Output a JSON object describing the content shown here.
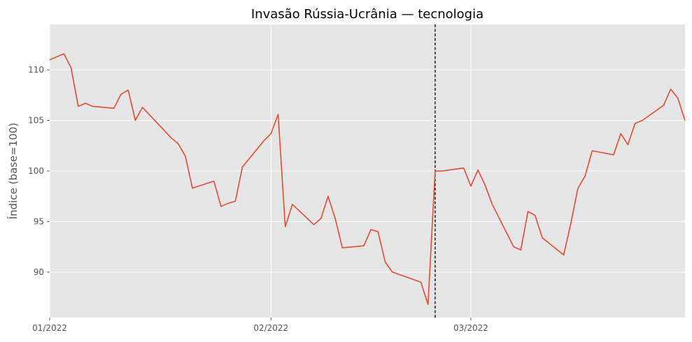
{
  "chart_data": {
    "type": "line",
    "title": "Invasão Rússia-Ucrânia — tecnologia",
    "xlabel": "",
    "ylabel": "Índice (base=100)",
    "x_ticks": [
      {
        "date": "2022-01-01",
        "label": "01/2022"
      },
      {
        "date": "2022-02-01",
        "label": "02/2022"
      },
      {
        "date": "2022-03-01",
        "label": "03/2022"
      }
    ],
    "y_ticks": [
      90,
      95,
      100,
      105,
      110
    ],
    "xlim": [
      "2022-01-01",
      "2022-03-31"
    ],
    "ylim": [
      85.5,
      114.5
    ],
    "grid": true,
    "event_line": {
      "date": "2022-02-24",
      "style": "dashed",
      "color": "#000000"
    },
    "colors": {
      "line": "#E24A33",
      "plot_bg": "#E5E5E5",
      "grid": "#FFFFFF"
    },
    "series": [
      {
        "x": [
          "2022-01-01",
          "2022-01-03",
          "2022-01-04",
          "2022-01-05",
          "2022-01-06",
          "2022-01-07",
          "2022-01-10",
          "2022-01-11",
          "2022-01-12",
          "2022-01-13",
          "2022-01-14",
          "2022-01-18",
          "2022-01-19",
          "2022-01-20",
          "2022-01-21",
          "2022-01-24",
          "2022-01-25",
          "2022-01-26",
          "2022-01-27",
          "2022-01-28",
          "2022-01-31",
          "2022-02-01",
          "2022-02-02",
          "2022-02-03",
          "2022-02-04",
          "2022-02-07",
          "2022-02-08",
          "2022-02-09",
          "2022-02-10",
          "2022-02-11",
          "2022-02-14",
          "2022-02-15",
          "2022-02-16",
          "2022-02-17",
          "2022-02-18",
          "2022-02-22",
          "2022-02-23",
          "2022-02-24",
          "2022-02-25",
          "2022-02-28",
          "2022-03-01",
          "2022-03-02",
          "2022-03-03",
          "2022-03-04",
          "2022-03-07",
          "2022-03-08",
          "2022-03-09",
          "2022-03-10",
          "2022-03-11",
          "2022-03-14",
          "2022-03-15",
          "2022-03-16",
          "2022-03-17",
          "2022-03-18",
          "2022-03-21",
          "2022-03-22",
          "2022-03-23",
          "2022-03-24",
          "2022-03-25",
          "2022-03-28",
          "2022-03-29",
          "2022-03-30",
          "2022-03-31"
        ],
        "values": [
          111.0,
          111.6,
          110.2,
          106.4,
          106.7,
          106.4,
          106.2,
          107.6,
          108.0,
          105.0,
          106.3,
          103.3,
          102.7,
          101.5,
          98.3,
          99.0,
          96.5,
          96.8,
          97.0,
          100.4,
          103.0,
          103.7,
          105.6,
          94.5,
          96.7,
          94.7,
          95.3,
          97.5,
          95.3,
          92.4,
          92.6,
          94.2,
          94.0,
          91.0,
          90.0,
          89.0,
          86.8,
          100.0,
          100.0,
          100.3,
          98.5,
          100.1,
          98.6,
          96.7,
          92.5,
          92.2,
          96.0,
          95.6,
          93.4,
          91.7,
          94.8,
          98.3,
          99.5,
          102.0,
          101.6,
          103.7,
          102.6,
          104.7,
          105.0,
          106.5,
          108.1,
          107.2,
          105.0
        ]
      }
    ]
  }
}
